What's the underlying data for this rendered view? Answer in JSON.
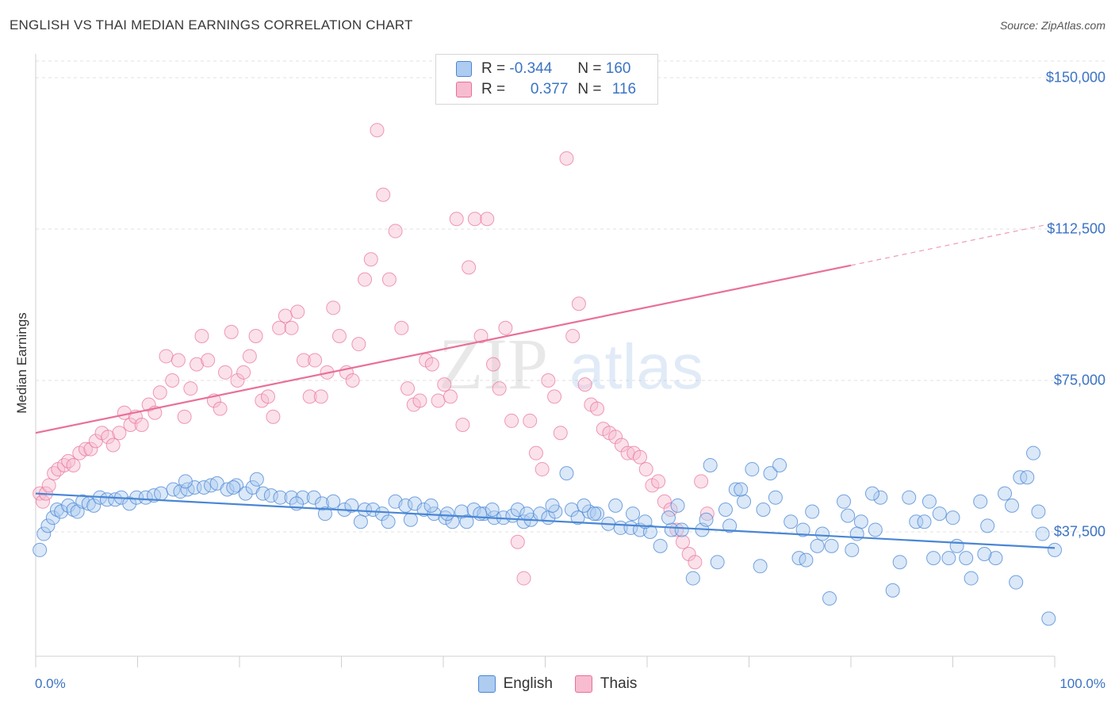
{
  "title": "ENGLISH VS THAI MEDIAN EARNINGS CORRELATION CHART",
  "source": "Source: ZipAtlas.com",
  "watermark": {
    "zip": "ZIP",
    "atlas": "atlas"
  },
  "colors": {
    "english": "#4a86d4",
    "english_fill": "#aecbf0",
    "thais": "#e8709a",
    "thais_fill": "#f7bcd0",
    "axis_text": "#3b73c4"
  },
  "legend_top": {
    "rows": [
      {
        "r_label": "R =",
        "r_value": "-0.344",
        "n_label": "N =",
        "n_value": "160"
      },
      {
        "r_label": "R =",
        "r_value": "0.377",
        "n_label": "N =",
        "n_value": "116"
      }
    ]
  },
  "chart_data": {
    "type": "scatter",
    "title": "ENGLISH VS THAI MEDIAN EARNINGS CORRELATION CHART",
    "xlabel": "",
    "ylabel": "Median Earnings",
    "x_tick_labels": [
      "0.0%",
      "100.0%"
    ],
    "y_tick_labels": [
      "$150,000",
      "$112,500",
      "$75,000",
      "$37,500"
    ],
    "y_ticks": [
      150000,
      112500,
      75000,
      37500
    ],
    "xlim": [
      0,
      100
    ],
    "ylim": [
      0,
      155000
    ],
    "grid": true,
    "legend_placement": "bottom",
    "series": [
      {
        "name": "English",
        "r": -0.344,
        "n": 160,
        "trend": {
          "x0": 0,
          "y0": 47000,
          "x1": 100,
          "y1": 33500
        },
        "points": [
          [
            0.4,
            33
          ],
          [
            0.8,
            37
          ],
          [
            1.2,
            39
          ],
          [
            1.7,
            41
          ],
          [
            2.1,
            43
          ],
          [
            2.5,
            42.5
          ],
          [
            3.2,
            44
          ],
          [
            3.7,
            43
          ],
          [
            4.1,
            42.5
          ],
          [
            4.6,
            45
          ],
          [
            5.2,
            44.5
          ],
          [
            5.7,
            44
          ],
          [
            6.3,
            46
          ],
          [
            7,
            45.5
          ],
          [
            7.8,
            45.5
          ],
          [
            8.4,
            46
          ],
          [
            9.2,
            44.5
          ],
          [
            9.9,
            46
          ],
          [
            10.8,
            46
          ],
          [
            11.6,
            46.5
          ],
          [
            12.3,
            47
          ],
          [
            13.5,
            48
          ],
          [
            14.2,
            47.5
          ],
          [
            14.9,
            48
          ],
          [
            15.6,
            48.5
          ],
          [
            16.5,
            48.5
          ],
          [
            17.2,
            49
          ],
          [
            17.8,
            49.5
          ],
          [
            18.8,
            48
          ],
          [
            19.7,
            49
          ],
          [
            20.6,
            47
          ],
          [
            21.3,
            48.5
          ],
          [
            22.3,
            47
          ],
          [
            23.1,
            46.5
          ],
          [
            24,
            46
          ],
          [
            25.1,
            46
          ],
          [
            26.2,
            46
          ],
          [
            27.3,
            46
          ],
          [
            28.1,
            44.5
          ],
          [
            29.2,
            45
          ],
          [
            30.3,
            43
          ],
          [
            31,
            44
          ],
          [
            32.3,
            43
          ],
          [
            33.1,
            43
          ],
          [
            34,
            42
          ],
          [
            35.3,
            45
          ],
          [
            36.3,
            44
          ],
          [
            37.2,
            44.5
          ],
          [
            38.1,
            43
          ],
          [
            39.1,
            42
          ],
          [
            40.2,
            41
          ],
          [
            40.9,
            40
          ],
          [
            41.8,
            42.5
          ],
          [
            43,
            43
          ],
          [
            44,
            42
          ],
          [
            45,
            41
          ],
          [
            45.9,
            41
          ],
          [
            46.8,
            41.5
          ],
          [
            47.9,
            40
          ],
          [
            48.6,
            40.5
          ],
          [
            49.5,
            42
          ],
          [
            50.3,
            41
          ],
          [
            51,
            42.5
          ],
          [
            52.1,
            52
          ],
          [
            52.6,
            43
          ],
          [
            53.2,
            41
          ],
          [
            54.3,
            42.5
          ],
          [
            55.1,
            42
          ],
          [
            56.2,
            39.5
          ],
          [
            57.4,
            38.5
          ],
          [
            58.4,
            38.5
          ],
          [
            59.3,
            38
          ],
          [
            60.3,
            37.5
          ],
          [
            61.3,
            34
          ],
          [
            62.4,
            38
          ],
          [
            63.4,
            38
          ],
          [
            64.5,
            26
          ],
          [
            65.4,
            38
          ],
          [
            66.9,
            30
          ],
          [
            67.7,
            43
          ],
          [
            68.1,
            39
          ],
          [
            68.7,
            48
          ],
          [
            69.5,
            45
          ],
          [
            70.3,
            53
          ],
          [
            71.1,
            29
          ],
          [
            72.1,
            52
          ],
          [
            73,
            54
          ],
          [
            74.1,
            40
          ],
          [
            74.9,
            31
          ],
          [
            75.6,
            30.5
          ],
          [
            76.7,
            34
          ],
          [
            77.2,
            37
          ],
          [
            78.1,
            34
          ],
          [
            79.3,
            45
          ],
          [
            80.1,
            33
          ],
          [
            81,
            40
          ],
          [
            82.4,
            38
          ],
          [
            82.9,
            46
          ],
          [
            84.1,
            23
          ],
          [
            84.8,
            30
          ],
          [
            86.4,
            40
          ],
          [
            87.2,
            40
          ],
          [
            88.1,
            31
          ],
          [
            88.7,
            42
          ],
          [
            89.6,
            31
          ],
          [
            90.4,
            34
          ],
          [
            91.3,
            31
          ],
          [
            91.8,
            26
          ],
          [
            92.7,
            45
          ],
          [
            93.4,
            39
          ],
          [
            94.2,
            31
          ],
          [
            95.1,
            47
          ],
          [
            95.8,
            44
          ],
          [
            96.6,
            51
          ],
          [
            97.3,
            51
          ],
          [
            97.9,
            57
          ],
          [
            98.8,
            37
          ],
          [
            99.4,
            16
          ],
          [
            100,
            33
          ],
          [
            14.7,
            50
          ],
          [
            19.4,
            48.5
          ],
          [
            21.7,
            50.5
          ],
          [
            25.6,
            44.5
          ],
          [
            28.4,
            42
          ],
          [
            31.9,
            40
          ],
          [
            34.6,
            40
          ],
          [
            36.8,
            40.5
          ],
          [
            38.8,
            44
          ],
          [
            42.3,
            40
          ],
          [
            44.8,
            43
          ],
          [
            47.3,
            43
          ],
          [
            50.7,
            44
          ],
          [
            53.8,
            44
          ],
          [
            56.9,
            44
          ],
          [
            59.8,
            40
          ],
          [
            63,
            44
          ],
          [
            66.2,
            54
          ],
          [
            69.2,
            48
          ],
          [
            72.6,
            46
          ],
          [
            75.3,
            38
          ],
          [
            77.9,
            21
          ],
          [
            80.6,
            37
          ],
          [
            82.1,
            47
          ],
          [
            85.7,
            46
          ],
          [
            87.7,
            45
          ],
          [
            90,
            41
          ],
          [
            93.1,
            32
          ],
          [
            96.2,
            25
          ],
          [
            98.4,
            42.5
          ],
          [
            40.4,
            42
          ],
          [
            43.6,
            42
          ],
          [
            48.2,
            42
          ],
          [
            54.8,
            42
          ],
          [
            58.6,
            42
          ],
          [
            62.1,
            41
          ],
          [
            65.8,
            40.5
          ],
          [
            71.4,
            43
          ],
          [
            76.2,
            42.5
          ],
          [
            79.7,
            41.5
          ]
        ]
      },
      {
        "name": "Thais",
        "r": 0.377,
        "n": 116,
        "trend": {
          "x0": 0,
          "y0": 62000,
          "x1": 80,
          "y1": 103500,
          "x_dash_end": 100,
          "y_dash_end": 114000
        },
        "points": [
          [
            0.4,
            47
          ],
          [
            0.7,
            45
          ],
          [
            1,
            47
          ],
          [
            1.3,
            49
          ],
          [
            1.8,
            52
          ],
          [
            2.2,
            53
          ],
          [
            2.8,
            54
          ],
          [
            3.2,
            55
          ],
          [
            3.7,
            54
          ],
          [
            4.3,
            57
          ],
          [
            4.9,
            58
          ],
          [
            5.4,
            58
          ],
          [
            5.9,
            60
          ],
          [
            6.5,
            62
          ],
          [
            7.1,
            61
          ],
          [
            7.6,
            59
          ],
          [
            8.2,
            62
          ],
          [
            8.7,
            67
          ],
          [
            9.3,
            64
          ],
          [
            9.8,
            66
          ],
          [
            10.4,
            64
          ],
          [
            11.1,
            69
          ],
          [
            11.7,
            67
          ],
          [
            12.2,
            72
          ],
          [
            12.8,
            81
          ],
          [
            13.4,
            75
          ],
          [
            14,
            80
          ],
          [
            14.6,
            66
          ],
          [
            15.2,
            73
          ],
          [
            15.8,
            79
          ],
          [
            16.3,
            86
          ],
          [
            16.9,
            80
          ],
          [
            17.5,
            70
          ],
          [
            18.1,
            68
          ],
          [
            18.6,
            77
          ],
          [
            19.2,
            87
          ],
          [
            19.8,
            75
          ],
          [
            20.4,
            77
          ],
          [
            21,
            81
          ],
          [
            21.6,
            86
          ],
          [
            22.2,
            70
          ],
          [
            22.8,
            71
          ],
          [
            23.3,
            66
          ],
          [
            23.9,
            88
          ],
          [
            24.5,
            91
          ],
          [
            25.1,
            88
          ],
          [
            25.7,
            92
          ],
          [
            26.3,
            80
          ],
          [
            26.9,
            71
          ],
          [
            27.4,
            80
          ],
          [
            28,
            71
          ],
          [
            28.6,
            77
          ],
          [
            29.2,
            93
          ],
          [
            29.8,
            86
          ],
          [
            30.5,
            77
          ],
          [
            31.1,
            75
          ],
          [
            31.7,
            84
          ],
          [
            32.3,
            100
          ],
          [
            32.9,
            105
          ],
          [
            33.5,
            137
          ],
          [
            34.1,
            121
          ],
          [
            34.7,
            100
          ],
          [
            35.3,
            112
          ],
          [
            35.9,
            88
          ],
          [
            36.5,
            73
          ],
          [
            37.1,
            69
          ],
          [
            37.7,
            70
          ],
          [
            38.3,
            80
          ],
          [
            38.9,
            79
          ],
          [
            39.5,
            70
          ],
          [
            40.1,
            74
          ],
          [
            40.7,
            71
          ],
          [
            41.3,
            115
          ],
          [
            41.9,
            64
          ],
          [
            42.5,
            103
          ],
          [
            43.1,
            115
          ],
          [
            43.7,
            86
          ],
          [
            44.3,
            115
          ],
          [
            44.9,
            79
          ],
          [
            45.5,
            73
          ],
          [
            46.1,
            88
          ],
          [
            46.7,
            65
          ],
          [
            47.3,
            35
          ],
          [
            47.9,
            26
          ],
          [
            48.5,
            65
          ],
          [
            49.1,
            57
          ],
          [
            49.7,
            53
          ],
          [
            50.3,
            75
          ],
          [
            50.9,
            71
          ],
          [
            51.5,
            62
          ],
          [
            52.1,
            130
          ],
          [
            52.7,
            86
          ],
          [
            53.3,
            94
          ],
          [
            53.9,
            74
          ],
          [
            54.5,
            69
          ],
          [
            55.1,
            68
          ],
          [
            55.7,
            63
          ],
          [
            56.3,
            62
          ],
          [
            56.9,
            61
          ],
          [
            57.5,
            59
          ],
          [
            58.1,
            57
          ],
          [
            58.7,
            57
          ],
          [
            59.3,
            56
          ],
          [
            59.9,
            53
          ],
          [
            60.5,
            49
          ],
          [
            61.1,
            50
          ],
          [
            61.7,
            45
          ],
          [
            62.3,
            43
          ],
          [
            62.9,
            38
          ],
          [
            63.5,
            35
          ],
          [
            64.1,
            32
          ],
          [
            64.7,
            30
          ],
          [
            65.3,
            50
          ],
          [
            65.9,
            42
          ]
        ]
      }
    ]
  },
  "legend_bottom": [
    {
      "label": "English"
    },
    {
      "label": "Thais"
    }
  ]
}
